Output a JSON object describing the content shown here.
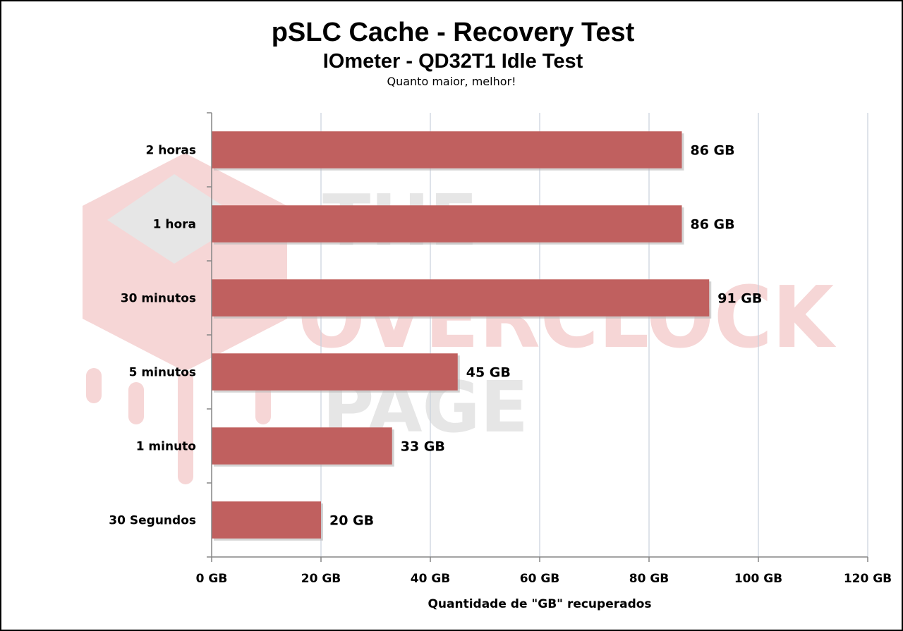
{
  "chart_data": {
    "type": "bar",
    "orientation": "horizontal",
    "title": "pSLC Cache - Recovery Test",
    "subtitle": "IOmeter - QD32T1 Idle Test",
    "note": "Quanto maior, melhor!",
    "categories": [
      "2 horas",
      "1 hora",
      "30 minutos",
      "5 minutos",
      "1 minuto",
      "30 Segundos"
    ],
    "values": [
      86,
      86,
      91,
      45,
      33,
      20
    ],
    "value_labels": [
      "86 GB",
      "86 GB",
      "91 GB",
      "45 GB",
      "33 GB",
      "20 GB"
    ],
    "xlabel": "Quantidade de \"GB\" recuperados",
    "ylabel": "",
    "xlim": [
      0,
      120
    ],
    "x_ticks": [
      0,
      20,
      40,
      60,
      80,
      100,
      120
    ],
    "x_tick_labels": [
      "0 GB",
      "20 GB",
      "40 GB",
      "60 GB",
      "80 GB",
      "100 GB",
      "120 GB"
    ],
    "grid": true,
    "legend": "none",
    "colors": {
      "bar": "#c0605f",
      "grid": "#c9d0dc",
      "axis": "#868686"
    }
  },
  "watermark": {
    "lines": [
      "THE",
      "OVERCLOCK",
      "PAGE"
    ],
    "colors": {
      "logo": "#f3c7c7",
      "text_pink": "#f4cfd0",
      "text_gray": "#e4e4e4"
    }
  }
}
